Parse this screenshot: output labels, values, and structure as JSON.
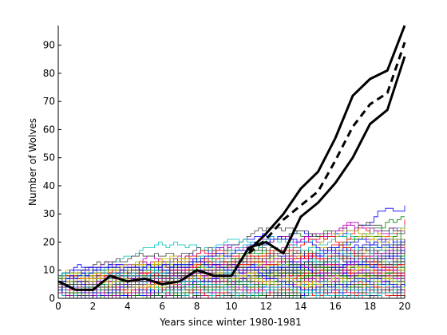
{
  "chart_data": {
    "type": "line",
    "xlabel": "Years since winter 1980-1981",
    "ylabel": "Number of Wolves",
    "xlim": [
      0,
      20
    ],
    "ylim": [
      0,
      97
    ],
    "x_ticks": [
      0,
      2,
      4,
      6,
      8,
      10,
      12,
      14,
      16,
      18,
      20
    ],
    "y_ticks": [
      0,
      10,
      20,
      30,
      40,
      50,
      60,
      70,
      80,
      90
    ],
    "grid": false,
    "legend": "none",
    "simulation_trajectories": {
      "count": 120,
      "step_style": "stairs",
      "colors": [
        "#0000ff",
        "#008000",
        "#ff0000",
        "#00bfbf",
        "#bf00bf",
        "#bfbf00",
        "#3f3f3f"
      ],
      "representative_end_values": [
        32,
        29,
        27,
        26,
        25,
        24,
        23,
        22,
        21,
        20,
        19,
        18,
        17,
        16,
        15,
        14,
        13,
        12,
        11,
        10,
        9,
        8,
        7,
        6,
        5,
        4,
        3,
        2,
        1,
        0
      ]
    },
    "series": [
      {
        "style": "solid",
        "color": "#000000",
        "x": [
          0,
          1,
          2,
          3,
          4,
          5,
          6,
          7,
          8,
          9,
          10,
          11,
          12,
          13,
          14,
          15,
          16,
          17,
          18,
          19,
          20
        ],
        "y": [
          6,
          3,
          3,
          8,
          6,
          7,
          5,
          6,
          10,
          8,
          8,
          18,
          20,
          16,
          29,
          34,
          41,
          50,
          62,
          67,
          86
        ]
      },
      {
        "style": "dashed",
        "color": "#000000",
        "x": [
          11,
          12,
          13,
          14,
          15,
          16,
          17,
          18,
          19,
          20
        ],
        "y": [
          16,
          21,
          28,
          33,
          38,
          49,
          61,
          69,
          73,
          91
        ]
      },
      {
        "style": "solid",
        "color": "#000000",
        "x": [
          11,
          12,
          13,
          14,
          15,
          16,
          17,
          18,
          19,
          20
        ],
        "y": [
          17,
          23,
          30,
          39,
          45,
          57,
          72,
          78,
          81,
          97
        ]
      }
    ]
  }
}
